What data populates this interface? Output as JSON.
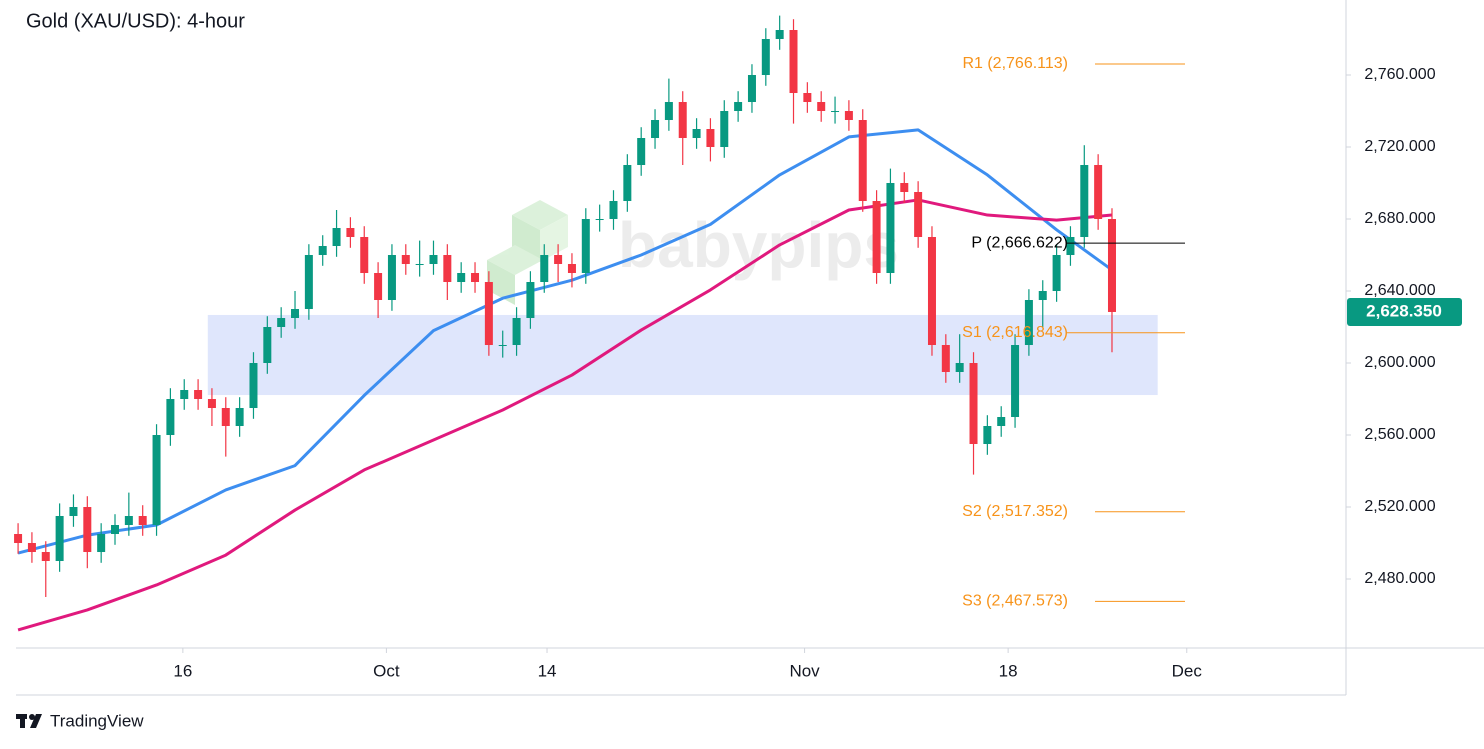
{
  "chart_data": {
    "type": "candlestick",
    "title": "Gold (XAU/USD): 4-hour",
    "watermark": "babypips",
    "brand": "TradingView",
    "categories": [
      null,
      null,
      null,
      null,
      null,
      null,
      null,
      null,
      null,
      null,
      null,
      null,
      null,
      null,
      null,
      null,
      null,
      null,
      null,
      null,
      null,
      null,
      null,
      null,
      null,
      null,
      null,
      null,
      null,
      null,
      null,
      null,
      null,
      null,
      null,
      null,
      null,
      null,
      null,
      null,
      null,
      null,
      null,
      null,
      null,
      null,
      null,
      null,
      null,
      null,
      null,
      null,
      null,
      null,
      null,
      null,
      null,
      null,
      null,
      null,
      null,
      null,
      null,
      null,
      null,
      null,
      null,
      null,
      null,
      null,
      null,
      null,
      null,
      null,
      null,
      null,
      null,
      null,
      null,
      null
    ],
    "open": [
      2505,
      2500,
      2495,
      2490,
      2515,
      2520,
      2495,
      2505,
      2510,
      2515,
      2510,
      2560,
      2580,
      2585,
      2580,
      2575,
      2565,
      2575,
      2600,
      2620,
      2625,
      2630,
      2660,
      2665,
      2675,
      2670,
      2650,
      2635,
      2660,
      2655,
      2655,
      2660,
      2645,
      2650,
      2645,
      2610,
      2610,
      2625,
      2645,
      2660,
      2655,
      2650,
      2680,
      2680,
      2690,
      2710,
      2725,
      2735,
      2745,
      2725,
      2730,
      2720,
      2740,
      2745,
      2760,
      2780,
      2785,
      2750,
      2745,
      2740,
      2740,
      2735,
      2690,
      2650,
      2700,
      2695,
      2670,
      2610,
      2595,
      2600,
      2555,
      2565,
      2570,
      2610,
      2635,
      2640,
      2660,
      2670,
      2710,
      2680
    ],
    "high": [
      2511,
      2506,
      2501,
      2522,
      2527,
      2526,
      2511,
      2516,
      2528,
      2521,
      2566,
      2586,
      2591,
      2591,
      2586,
      2581,
      2581,
      2606,
      2626,
      2631,
      2640,
      2666,
      2671,
      2685,
      2681,
      2676,
      2656,
      2666,
      2666,
      2668,
      2668,
      2666,
      2656,
      2656,
      2651,
      2618,
      2631,
      2651,
      2666,
      2666,
      2661,
      2686,
      2688,
      2696,
      2716,
      2731,
      2741,
      2758,
      2751,
      2736,
      2736,
      2746,
      2751,
      2766,
      2786,
      2793,
      2791,
      2756,
      2751,
      2748,
      2746,
      2741,
      2696,
      2708,
      2706,
      2701,
      2676,
      2616,
      2616,
      2606,
      2571,
      2576,
      2616,
      2641,
      2646,
      2666,
      2676,
      2721,
      2716,
      2686
    ],
    "low": [
      2494,
      2489,
      2470,
      2484,
      2509,
      2486,
      2489,
      2499,
      2504,
      2504,
      2504,
      2554,
      2574,
      2574,
      2565,
      2548,
      2559,
      2569,
      2594,
      2614,
      2619,
      2624,
      2654,
      2659,
      2664,
      2644,
      2625,
      2629,
      2649,
      2648,
      2649,
      2635,
      2639,
      2639,
      2604,
      2603,
      2604,
      2619,
      2639,
      2645,
      2642,
      2644,
      2673,
      2674,
      2684,
      2704,
      2719,
      2729,
      2710,
      2719,
      2712,
      2714,
      2734,
      2739,
      2754,
      2774,
      2733,
      2739,
      2734,
      2733,
      2729,
      2684,
      2644,
      2644,
      2689,
      2664,
      2604,
      2589,
      2589,
      2538,
      2549,
      2559,
      2564,
      2604,
      2620,
      2634,
      2654,
      2664,
      2674,
      2606
    ],
    "close": [
      2500,
      2495,
      2490,
      2515,
      2520,
      2495,
      2505,
      2510,
      2515,
      2510,
      2560,
      2580,
      2585,
      2580,
      2575,
      2565,
      2575,
      2600,
      2620,
      2625,
      2630,
      2660,
      2665,
      2675,
      2670,
      2650,
      2635,
      2660,
      2655,
      2655,
      2660,
      2645,
      2650,
      2645,
      2610,
      2610,
      2625,
      2645,
      2660,
      2655,
      2650,
      2680,
      2680,
      2690,
      2710,
      2725,
      2735,
      2745,
      2725,
      2730,
      2720,
      2740,
      2745,
      2760,
      2780,
      2785,
      2750,
      2745,
      2740,
      2740,
      2735,
      2690,
      2650,
      2700,
      2695,
      2670,
      2610,
      2595,
      2600,
      2555,
      2565,
      2570,
      2610,
      2635,
      2640,
      2660,
      2670,
      2710,
      2680,
      2628.35
    ],
    "up_color": "#089981",
    "down_color": "#f23645",
    "series": [
      {
        "color": "#3d8ef0",
        "x": [
          0,
          5,
          10,
          15,
          20,
          25,
          30,
          35,
          40,
          45,
          50,
          55,
          60,
          65,
          70,
          75,
          79
        ],
        "values": [
          2494.4,
          2504.4,
          2510,
          2529.5,
          2543,
          2582,
          2618,
          2636,
          2646,
          2660,
          2677,
          2704.5,
          2725.6,
          2729.5,
          2704.5,
          2674,
          2651.7
        ]
      },
      {
        "color": "#e0197d",
        "x": [
          0,
          5,
          10,
          15,
          20,
          25,
          30,
          35,
          40,
          45,
          50,
          55,
          60,
          65,
          70,
          75,
          79
        ],
        "values": [
          2451.7,
          2462.8,
          2476.7,
          2493.3,
          2518.3,
          2540.6,
          2557.2,
          2573.9,
          2593.3,
          2618.3,
          2640.6,
          2665.6,
          2685,
          2690.6,
          2682.2,
          2679.4,
          2682.2
        ]
      }
    ],
    "zone": {
      "x": [
        13.7,
        82.3
      ],
      "y": [
        2582.2,
        2626.7
      ],
      "color": "#dfe6fc"
    },
    "levels": [
      {
        "label": "R1 (2,766.113)",
        "value": 2766.113,
        "color": "#f7931a"
      },
      {
        "label": "P (2,666.622)",
        "value": 2666.622,
        "color": "#000000"
      },
      {
        "label": "S1 (2,616.843)",
        "value": 2616.843,
        "color": "#f7931a"
      },
      {
        "label": "S2 (2,517.352)",
        "value": 2517.352,
        "color": "#f7931a"
      },
      {
        "label": "S3 (2,467.573)",
        "value": 2467.573,
        "color": "#f7931a"
      }
    ],
    "last_price": {
      "value": 2628.35,
      "label": "2,628.350"
    },
    "xlim": [
      -0.15,
      95.9
    ],
    "xticks": [
      {
        "value": 11.9,
        "label": "16"
      },
      {
        "value": 26.6,
        "label": "Oct"
      },
      {
        "value": 38.2,
        "label": "14"
      },
      {
        "value": 56.8,
        "label": "Nov"
      },
      {
        "value": 71.5,
        "label": "18"
      },
      {
        "value": 84.4,
        "label": "Dec"
      }
    ],
    "ylim": [
      2441.67,
      2801.67
    ],
    "yticks": [
      {
        "value": 2480,
        "label": "2,480.000"
      },
      {
        "value": 2520,
        "label": "2,520.000"
      },
      {
        "value": 2560,
        "label": "2,560.000"
      },
      {
        "value": 2600,
        "label": "2,600.000"
      },
      {
        "value": 2640,
        "label": "2,640.000"
      },
      {
        "value": 2680,
        "label": "2,680.000"
      },
      {
        "value": 2720,
        "label": "2,720.000"
      },
      {
        "value": 2760,
        "label": "2,760.000"
      }
    ],
    "grid": false
  }
}
